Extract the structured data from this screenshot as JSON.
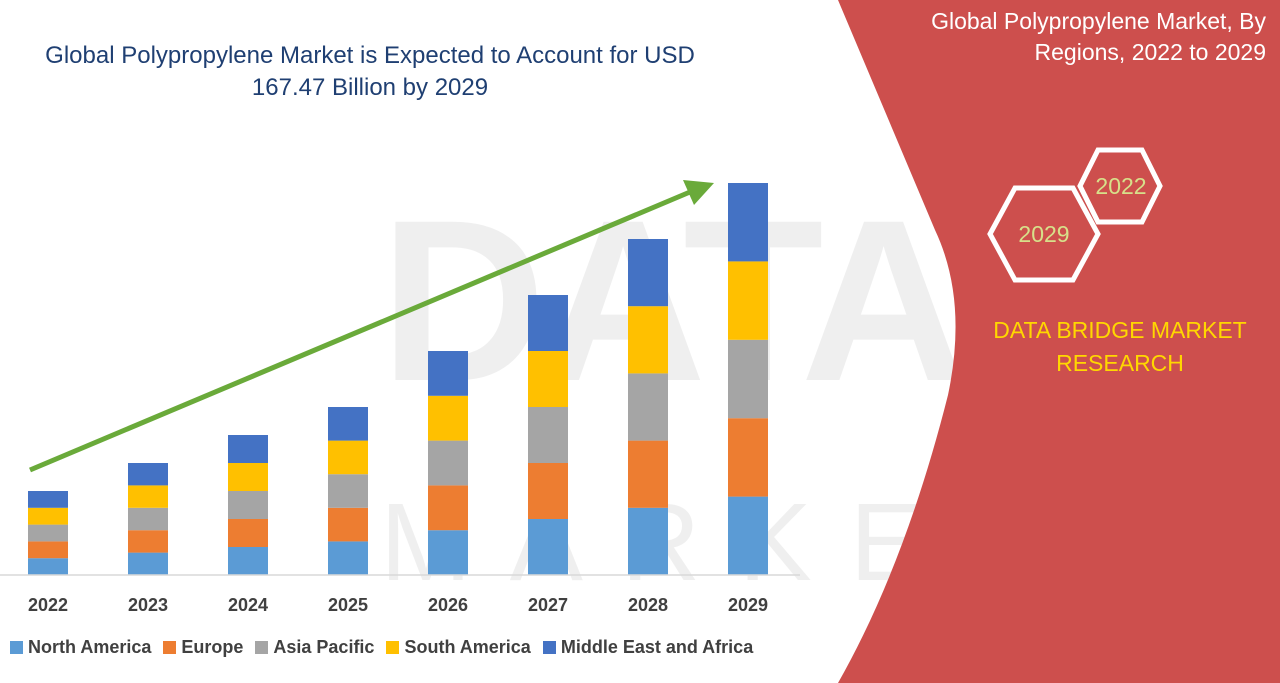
{
  "title": "Global Polypropylene Market is Expected to Account for USD 167.47 Billion by 2029",
  "side_panel": {
    "title": "Global Polypropylene Market, By Regions, 2022 to 2029",
    "badge_front": "2029",
    "badge_back": "2022",
    "brand": "DATA BRIDGE MARKET RESEARCH"
  },
  "colors": {
    "north_america": "#5b9bd5",
    "europe": "#ed7d31",
    "asia_pacific": "#a5a5a5",
    "south_america": "#ffc000",
    "middle_east_africa": "#4472c4",
    "panel": "#cd4f4d",
    "arrow": "#6aaa3a",
    "title": "#1f3f72",
    "brand": "#ffd700"
  },
  "chart_data": {
    "type": "bar",
    "stacked": true,
    "categories": [
      "2022",
      "2023",
      "2024",
      "2025",
      "2026",
      "2027",
      "2028",
      "2029"
    ],
    "series": [
      {
        "name": "North America",
        "values": [
          3.0,
          4.0,
          5.0,
          6.0,
          8.0,
          10.0,
          12.0,
          14.0
        ]
      },
      {
        "name": "Europe",
        "values": [
          3.0,
          4.0,
          5.0,
          6.0,
          8.0,
          10.0,
          12.0,
          14.0
        ]
      },
      {
        "name": "Asia Pacific",
        "values": [
          3.0,
          4.0,
          5.0,
          6.0,
          8.0,
          10.0,
          12.0,
          14.0
        ]
      },
      {
        "name": "South America",
        "values": [
          3.0,
          4.0,
          5.0,
          6.0,
          8.0,
          10.0,
          12.0,
          14.0
        ]
      },
      {
        "name": "Middle East and Africa",
        "values": [
          3.0,
          4.0,
          5.0,
          6.0,
          8.0,
          10.0,
          12.0,
          14.0
        ]
      }
    ],
    "ylim": [
      0,
      70
    ],
    "legend": "bottom",
    "grid": false,
    "trend_arrow": true
  }
}
